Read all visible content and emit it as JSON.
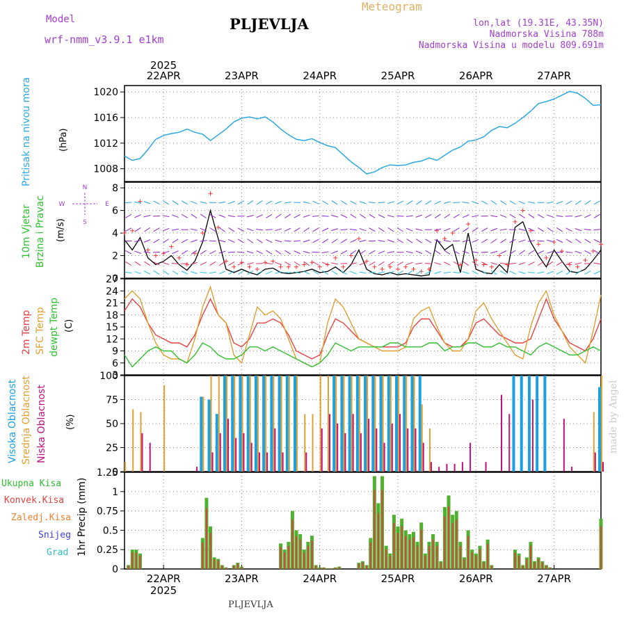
{
  "header": {
    "model_label": "Model",
    "model_name": "wrf-nmm_v3.9.1 e1km",
    "title": "PLJEVLJA",
    "meteogram": "Meteogram",
    "lonlat": "lon,lat (19.31E, 43.35N)",
    "elev": "Nadmorska Visina 788m",
    "elev_model": "Nadmorska Visina u modelu 809.691m",
    "footer": "PLJEVLJA",
    "credit": "made by Angel"
  },
  "colors": {
    "pressure": "#2aa8e0",
    "t2m": "#e84040",
    "sfc": "#e0a030",
    "dewpt": "#30c030",
    "cloud_high": "#1ca0e0",
    "cloud_mid": "#e0a030",
    "cloud_low": "#c01080",
    "precip_total": "#50b030",
    "precip_conv": "#e04040",
    "precip_frz": "#f08030",
    "snow": "#4040e0",
    "hail": "#30c0c0"
  },
  "chart_data": [
    {
      "id": "pressure",
      "type": "line",
      "ylabel_title": "Pritisak na nivou mora",
      "ylabel_unit": "(hPa)",
      "ylim": [
        1006,
        1021
      ],
      "yticks": [
        1008,
        1012,
        1016,
        1020
      ],
      "x_days": [
        0.0,
        0.1,
        0.2,
        0.3,
        0.4,
        0.5,
        0.6,
        0.7,
        0.8,
        0.9,
        1.0,
        1.1,
        1.2,
        1.3,
        1.4,
        1.5,
        1.6,
        1.7,
        1.8,
        1.9,
        2.0,
        2.1,
        2.2,
        2.3,
        2.4,
        2.5,
        2.6,
        2.7,
        2.8,
        2.9,
        3.0,
        3.1,
        3.2,
        3.3,
        3.4,
        3.5,
        3.6,
        3.7,
        3.8,
        3.9,
        4.0,
        4.1,
        4.2,
        4.3,
        4.4,
        4.5,
        4.6,
        4.7,
        4.8,
        4.9,
        5.0,
        5.1,
        5.2,
        5.3,
        5.4,
        5.5,
        5.6,
        5.7,
        5.8,
        5.9,
        6.0,
        6.1
      ],
      "values": [
        1010,
        1009.3,
        1009.6,
        1011,
        1012.6,
        1013.2,
        1013.5,
        1013.7,
        1014.2,
        1013.7,
        1013.4,
        1012.4,
        1013.3,
        1014.2,
        1015.3,
        1015.9,
        1016.1,
        1015.8,
        1016.1,
        1015.3,
        1014.2,
        1013.3,
        1012.6,
        1012.4,
        1012.7,
        1012.1,
        1011.6,
        1011.3,
        1010.2,
        1009.1,
        1008.2,
        1007.2,
        1007.5,
        1008.2,
        1008.6,
        1008.5,
        1008.6,
        1009,
        1009.2,
        1009.7,
        1009.3,
        1010.1,
        1010.9,
        1011.4,
        1012.3,
        1012.5,
        1013,
        1014,
        1014.6,
        1014.4,
        1015.1,
        1016,
        1017,
        1018.2,
        1018.5,
        1018.9,
        1019.5,
        1020.1,
        1019.8,
        1019,
        1017.9,
        1018
      ]
    },
    {
      "id": "wind",
      "type": "line",
      "ylabel_title": "10m Vjetar",
      "ylabel_title2": "Brzina i Pravac",
      "ylabel_unit": "(m/s)",
      "compass": "N",
      "compass_w": "W",
      "compass_e": "E",
      "compass_s": "S",
      "ylim": [
        0,
        8.5
      ],
      "yticks": [
        0,
        2,
        4,
        6,
        8
      ],
      "x_days": [
        0.0,
        0.1,
        0.2,
        0.3,
        0.4,
        0.5,
        0.6,
        0.7,
        0.8,
        0.9,
        1.0,
        1.1,
        1.2,
        1.3,
        1.4,
        1.5,
        1.6,
        1.7,
        1.8,
        1.9,
        2.0,
        2.1,
        2.2,
        2.3,
        2.4,
        2.5,
        2.6,
        2.7,
        2.8,
        2.9,
        3.0,
        3.1,
        3.2,
        3.3,
        3.4,
        3.5,
        3.6,
        3.7,
        3.8,
        3.9,
        4.0,
        4.1,
        4.2,
        4.3,
        4.4,
        4.5,
        4.6,
        4.7,
        4.8,
        4.9,
        5.0,
        5.1,
        5.2,
        5.3,
        5.4,
        5.5,
        5.6,
        5.7,
        5.8,
        5.9,
        6.0,
        6.1
      ],
      "values": [
        3.4,
        2.5,
        3.6,
        1.8,
        1.2,
        1.5,
        2.0,
        1.2,
        0.7,
        1.5,
        3.2,
        6.0,
        3.5,
        0.8,
        0.5,
        0.8,
        0.5,
        0.3,
        0.8,
        0.9,
        0.5,
        0.4,
        0.5,
        0.6,
        0.8,
        0.5,
        0.6,
        1.0,
        0.5,
        1.2,
        2.5,
        0.8,
        0.4,
        0.3,
        0.5,
        0.3,
        0.4,
        0.3,
        0.2,
        0.3,
        3.4,
        2.5,
        3.0,
        0.5,
        4.0,
        0.8,
        0.5,
        0.4,
        1.2,
        0.5,
        4.5,
        5.0,
        3.2,
        2.0,
        1.0,
        2.5,
        1.5,
        0.6,
        0.5,
        0.8,
        1.6,
        2.5
      ],
      "gust_values": [
        4.0,
        4.2,
        6.8,
        2.5,
        2.0,
        2.2,
        2.8,
        1.8,
        1.2,
        2.2,
        4.0,
        7.5,
        4.5,
        1.5,
        1.0,
        1.4,
        1.0,
        0.8,
        1.4,
        1.5,
        1.0,
        1.0,
        1.0,
        1.2,
        1.4,
        1.0,
        1.2,
        1.8,
        1.0,
        2.0,
        3.5,
        1.5,
        1.0,
        0.8,
        1.0,
        0.8,
        1.0,
        0.8,
        0.6,
        0.8,
        4.2,
        3.5,
        4.0,
        1.2,
        4.8,
        1.6,
        1.2,
        1.0,
        2.0,
        1.2,
        5.0,
        6.0,
        4.2,
        3.0,
        1.8,
        3.2,
        2.4,
        1.2,
        1.0,
        1.6,
        2.4,
        3.0
      ]
    },
    {
      "id": "temperature",
      "type": "line",
      "ylabel_t2m": "2m Temp",
      "ylabel_sfc": "SFC Temp",
      "ylabel_dew": "dewpt Temp",
      "ylabel_unit": "(C)",
      "ylim": [
        3,
        27
      ],
      "yticks": [
        3,
        6,
        9,
        12,
        15,
        18,
        21,
        24,
        27
      ],
      "x_days": [
        0.0,
        0.1,
        0.2,
        0.3,
        0.4,
        0.5,
        0.6,
        0.7,
        0.8,
        0.9,
        1.0,
        1.1,
        1.2,
        1.3,
        1.4,
        1.5,
        1.6,
        1.7,
        1.8,
        1.9,
        2.0,
        2.1,
        2.2,
        2.3,
        2.4,
        2.5,
        2.6,
        2.7,
        2.8,
        2.9,
        3.0,
        3.1,
        3.2,
        3.3,
        3.4,
        3.5,
        3.6,
        3.7,
        3.8,
        3.9,
        4.0,
        4.1,
        4.2,
        4.3,
        4.4,
        4.5,
        4.6,
        4.7,
        4.8,
        4.9,
        5.0,
        5.1,
        5.2,
        5.3,
        5.4,
        5.5,
        5.6,
        5.7,
        5.8,
        5.9,
        6.0,
        6.1
      ],
      "series": [
        {
          "id": "t2m",
          "values": [
            19,
            22,
            20,
            16,
            13,
            12,
            11,
            11,
            10,
            13,
            18,
            22,
            18,
            16,
            11,
            10,
            12,
            16,
            16,
            17,
            16,
            13,
            9,
            8,
            7,
            8,
            13,
            17,
            16,
            14,
            12,
            11,
            10,
            10,
            10,
            10,
            11,
            15,
            17,
            17,
            14,
            11,
            10,
            10,
            12,
            16,
            17,
            15,
            13,
            12,
            11,
            11,
            12,
            17,
            22,
            17,
            14,
            11,
            10,
            9,
            12,
            17
          ]
        },
        {
          "id": "sfc",
          "values": [
            22,
            24,
            22,
            16,
            11,
            8,
            7,
            7,
            6,
            12,
            20,
            25,
            18,
            16,
            8,
            6,
            13,
            20,
            18,
            19,
            17,
            12,
            7,
            6,
            5,
            6,
            16,
            22,
            20,
            16,
            12,
            11,
            10,
            9,
            9,
            9,
            10,
            17,
            19,
            20,
            15,
            11,
            9,
            9,
            12,
            19,
            21,
            17,
            14,
            11,
            8,
            7,
            15,
            21,
            24,
            18,
            14,
            10,
            8,
            6,
            14,
            23
          ]
        },
        {
          "id": "dewpt",
          "values": [
            8,
            5,
            7,
            9,
            10,
            9,
            9,
            7,
            6,
            8,
            11,
            10,
            8,
            7,
            7,
            8,
            10,
            10,
            9,
            10,
            9,
            8,
            7,
            6,
            5,
            6,
            8,
            11,
            10,
            9,
            10,
            10,
            10,
            10,
            11,
            11,
            10,
            10,
            10,
            11,
            11,
            9,
            10,
            10,
            11,
            11,
            10,
            10,
            11,
            10,
            10,
            9,
            8,
            10,
            11,
            10,
            9,
            8,
            8,
            9,
            10,
            9
          ]
        }
      ]
    },
    {
      "id": "clouds",
      "type": "bar",
      "ylabel_high": "Visoka Oblacnost",
      "ylabel_mid": "Srednja Oblacnost",
      "ylabel_low": "Niska Oblacnost",
      "ylabel_unit": "(%)",
      "ylim": [
        0,
        100
      ],
      "yticks": [
        0,
        25,
        50,
        75,
        100
      ],
      "x_days": [
        0.0,
        0.1,
        0.2,
        0.3,
        0.4,
        0.5,
        0.6,
        0.7,
        0.8,
        0.9,
        1.0,
        1.1,
        1.2,
        1.3,
        1.4,
        1.5,
        1.6,
        1.7,
        1.8,
        1.9,
        2.0,
        2.1,
        2.2,
        2.3,
        2.4,
        2.5,
        2.6,
        2.7,
        2.8,
        2.9,
        3.0,
        3.1,
        3.2,
        3.3,
        3.4,
        3.5,
        3.6,
        3.7,
        3.8,
        3.9,
        4.0,
        4.1,
        4.2,
        4.3,
        4.4,
        4.5,
        4.6,
        4.7,
        4.8,
        4.9,
        5.0,
        5.1,
        5.2,
        5.3,
        5.4,
        5.5,
        5.6,
        5.7,
        5.8,
        5.9,
        6.0,
        6.1
      ],
      "series": [
        {
          "id": "high",
          "values": [
            0,
            0,
            0,
            0,
            0,
            0,
            0,
            0,
            0,
            0,
            78,
            75,
            60,
            100,
            100,
            100,
            100,
            100,
            100,
            100,
            100,
            100,
            100,
            0,
            0,
            0,
            0,
            100,
            100,
            100,
            100,
            100,
            100,
            100,
            100,
            100,
            100,
            100,
            100,
            0,
            0,
            0,
            0,
            0,
            0,
            0,
            0,
            0,
            0,
            0,
            100,
            100,
            100,
            100,
            100,
            0,
            0,
            0,
            0,
            0,
            0,
            88
          ]
        },
        {
          "id": "mid",
          "values": [
            10,
            65,
            62,
            0,
            0,
            90,
            0,
            0,
            0,
            0,
            78,
            100,
            100,
            100,
            100,
            100,
            100,
            100,
            100,
            100,
            100,
            100,
            100,
            60,
            60,
            100,
            100,
            100,
            100,
            100,
            100,
            100,
            100,
            100,
            100,
            100,
            100,
            100,
            70,
            45,
            0,
            0,
            0,
            0,
            0,
            0,
            0,
            0,
            0,
            0,
            0,
            0,
            0,
            0,
            0,
            0,
            0,
            0,
            0,
            0,
            62,
            100
          ]
        },
        {
          "id": "low",
          "values": [
            0,
            0,
            40,
            30,
            0,
            0,
            0,
            0,
            0,
            5,
            0,
            20,
            40,
            55,
            35,
            40,
            30,
            20,
            20,
            45,
            20,
            0,
            0,
            20,
            0,
            45,
            60,
            50,
            40,
            60,
            40,
            55,
            45,
            30,
            50,
            60,
            45,
            45,
            30,
            10,
            5,
            8,
            8,
            10,
            30,
            0,
            10,
            0,
            80,
            60,
            0,
            0,
            75,
            0,
            0,
            0,
            55,
            5,
            0,
            0,
            20,
            10
          ]
        }
      ]
    },
    {
      "id": "precip",
      "type": "bar",
      "ylabel_unit": "1hr Precip (mm)",
      "ylim": [
        0,
        1.25
      ],
      "yticks": [
        0,
        0.25,
        0.5,
        0.75,
        1,
        1.25
      ],
      "ytick_labels": [
        "0",
        "0.25",
        "0.5",
        "0.75",
        "1",
        "1.25"
      ],
      "legend_total": "Ukupna Kisa",
      "legend_conv": "Konvek.Kisa",
      "legend_frz": "Zaledj.Kisa",
      "legend_snow": "Snijeg",
      "legend_hail": "Grad",
      "x_days": [
        0.05,
        0.1,
        0.15,
        0.2,
        1.0,
        1.05,
        1.1,
        1.15,
        1.2,
        1.25,
        1.3,
        1.4,
        1.45,
        1.5,
        2.0,
        2.05,
        2.1,
        2.15,
        2.2,
        2.25,
        2.3,
        2.35,
        2.4,
        2.45,
        2.5,
        2.55,
        2.6,
        2.65,
        2.7,
        2.75,
        3.0,
        3.05,
        3.1,
        3.15,
        3.2,
        3.25,
        3.3,
        3.35,
        3.4,
        3.45,
        3.5,
        3.55,
        3.6,
        3.65,
        3.7,
        3.75,
        3.8,
        3.85,
        3.9,
        3.95,
        4.0,
        4.05,
        4.1,
        4.15,
        4.2,
        4.25,
        4.3,
        4.35,
        4.4,
        4.45,
        4.5,
        4.55,
        4.6,
        4.65,
        4.7,
        5.0,
        5.05,
        5.1,
        5.15,
        5.2,
        5.25,
        5.3,
        5.35,
        5.4,
        5.45,
        6.1
      ],
      "values": [
        0.05,
        0.25,
        0.25,
        0.2,
        0.4,
        0.92,
        0.55,
        0.15,
        0.13,
        0.05,
        0.02,
        0.05,
        0.08,
        0.03,
        0.33,
        0.25,
        0.35,
        0.75,
        0.5,
        0.45,
        0.25,
        0.35,
        0.43,
        0.05,
        0.02,
        0.02,
        0.01,
        0.01,
        0.02,
        0.03,
        0.08,
        0.1,
        0.05,
        0.4,
        1.2,
        0.85,
        1.2,
        0.3,
        0.2,
        0.7,
        0.55,
        0.65,
        0.5,
        0.45,
        0.48,
        0.35,
        0.6,
        0.2,
        0.35,
        0.45,
        0.35,
        0.1,
        0.8,
        0.95,
        0.7,
        0.75,
        0.35,
        0.15,
        0.5,
        0.25,
        0.2,
        0.3,
        0.1,
        0.38,
        0.05,
        0.25,
        0.2,
        0.05,
        0.15,
        0.35,
        0.1,
        0.15,
        0.1,
        0.05,
        0.02,
        0.65
      ]
    }
  ],
  "x_axis": {
    "year": "2025",
    "day_labels": [
      "22APR",
      "23APR",
      "24APR",
      "25APR",
      "26APR",
      "27APR"
    ],
    "day_positions": [
      0.5,
      1.5,
      2.5,
      3.5,
      4.5,
      5.5
    ],
    "xlim": [
      0,
      6.1
    ]
  }
}
